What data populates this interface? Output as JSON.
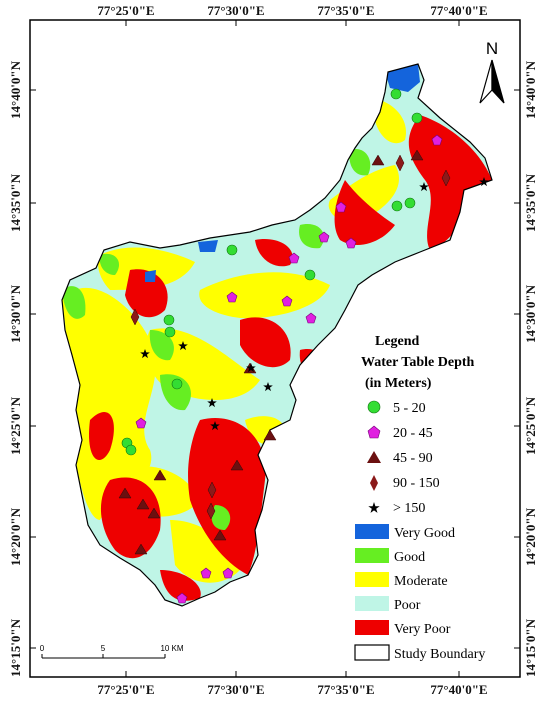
{
  "axes": {
    "top_labels": [
      "77°25'0\"E",
      "77°30'0\"E",
      "77°35'0\"E",
      "77°40'0\"E"
    ],
    "bottom_labels": [
      "77°25'0\"E",
      "77°30'0\"E",
      "77°35'0\"E",
      "77°40'0\"E"
    ],
    "left_labels": [
      "14°40'0\"N",
      "14°35'0\"N",
      "14°30'0\"N",
      "14°25'0\"N",
      "14°20'0\"N",
      "14°15'0\"N"
    ],
    "right_labels": [
      "14°40'0\"N",
      "14°35'0\"N",
      "14°30'0\"N",
      "14°25'0\"N",
      "14°20'0\"N",
      "14°15'0\"N"
    ]
  },
  "north_arrow": {
    "label": "N",
    "icon": "north-arrow-icon"
  },
  "scale_bar": {
    "labels": [
      "0",
      "5",
      "10 KM"
    ]
  },
  "legend": {
    "title": "Legend",
    "subtitle_line1": "Water Table Depth",
    "subtitle_line2": "(in Meters)",
    "depth_classes": [
      {
        "label": "5 - 20",
        "symbol": "circle",
        "color": "#33dd33"
      },
      {
        "label": "20 - 45",
        "symbol": "pentagon",
        "color": "#e020e0"
      },
      {
        "label": "45 - 90",
        "symbol": "triangle",
        "color": "#6b1010"
      },
      {
        "label": "90 - 150",
        "symbol": "diamond",
        "color": "#8b1a1a"
      },
      {
        "label": "> 150",
        "symbol": "star",
        "color": "#000000"
      }
    ],
    "zone_classes": [
      {
        "label": "Very Good",
        "color": "#1464dc"
      },
      {
        "label": "Good",
        "color": "#66ee22"
      },
      {
        "label": "Moderate",
        "color": "#ffff00"
      },
      {
        "label": "Poor",
        "color": "#bff5e6"
      },
      {
        "label": "Very Poor",
        "color": "#ee0000"
      },
      {
        "label": "Study Boundary",
        "color": "#ffffff"
      }
    ]
  }
}
